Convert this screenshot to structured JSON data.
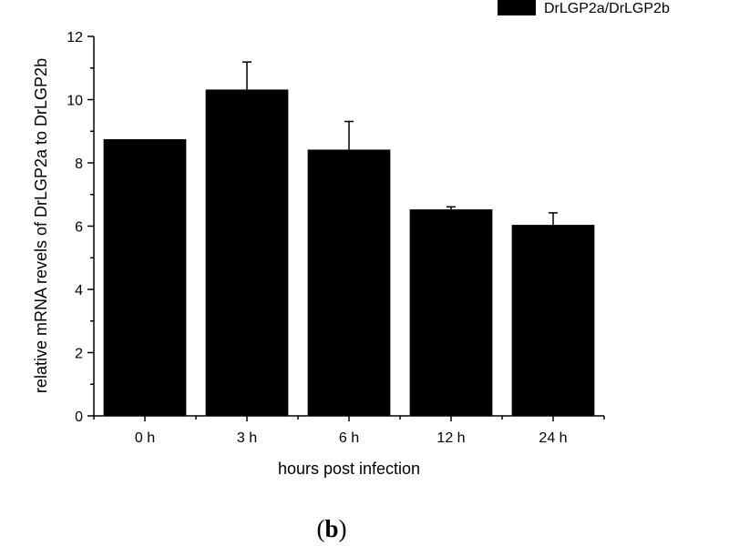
{
  "chart_data": {
    "type": "bar",
    "categories": [
      "0 h",
      "3 h",
      "6 h",
      "12 h",
      "24 h"
    ],
    "series": [
      {
        "name": "DrLGP2a/DrLGP2b",
        "values": [
          8.75,
          10.32,
          8.42,
          6.53,
          6.04
        ],
        "error_plus": [
          0,
          0.87,
          0.89,
          0.08,
          0.38
        ],
        "color": "#000000"
      }
    ],
    "xlabel": "hours post infection",
    "ylabel": "relative mRNA revels of DrLGP2a to DrLGP2b",
    "ylim": [
      0,
      12
    ],
    "yticks": [
      0,
      2,
      4,
      6,
      8,
      10,
      12
    ],
    "grid": false,
    "legend_position": "top-right"
  },
  "figure": {
    "panel_open": "(",
    "panel_letter": "b",
    "panel_close": ")"
  }
}
